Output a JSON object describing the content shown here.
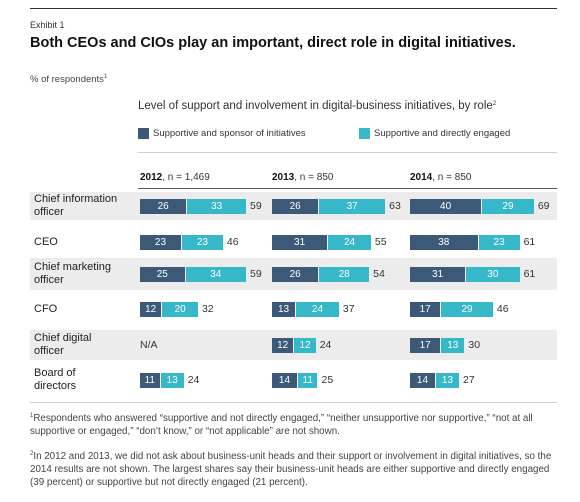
{
  "exhibit": "Exhibit 1",
  "title": "Both CEOs and CIOs play an important, direct role in digital initiatives.",
  "respondents_label": "% of respondents",
  "respondents_sup": "1",
  "subtitle": "Level of support and involvement in digital-business initiatives, by role",
  "subtitle_sup": "2",
  "colors": {
    "dark": "#3c5a77",
    "teal": "#36b8c9",
    "band": "#ececec"
  },
  "chart_data": {
    "type": "bar",
    "stacked": true,
    "orientation": "horizontal",
    "categories": [
      "Chief information officer",
      "CEO",
      "Chief marketing officer",
      "CFO",
      "Chief digital officer",
      "Board of directors"
    ],
    "groups": [
      {
        "year": "2012",
        "n_label": "n = 1,469",
        "dark": [
          26,
          23,
          25,
          12,
          null,
          11
        ],
        "teal": [
          33,
          23,
          34,
          20,
          null,
          13
        ],
        "total": [
          59,
          46,
          59,
          32,
          null,
          24
        ]
      },
      {
        "year": "2013",
        "n_label": "n = 850",
        "dark": [
          26,
          31,
          26,
          13,
          12,
          14
        ],
        "teal": [
          37,
          24,
          28,
          24,
          12,
          11
        ],
        "total": [
          63,
          55,
          54,
          37,
          24,
          25
        ]
      },
      {
        "year": "2014",
        "n_label": "n = 850",
        "dark": [
          40,
          38,
          31,
          17,
          17,
          14
        ],
        "teal": [
          29,
          23,
          30,
          29,
          13,
          13
        ],
        "total": [
          69,
          61,
          61,
          46,
          30,
          27
        ]
      }
    ],
    "series": [
      {
        "name": "Supportive and sponsor of initiatives",
        "color": "#3c5a77"
      },
      {
        "name": "Supportive and directly engaged",
        "color": "#36b8c9"
      }
    ],
    "na_label": "N/A",
    "role_labels": [
      "Chief information\nofficer",
      "CEO",
      "Chief marketing\nofficer",
      "CFO",
      "Chief digital\nofficer",
      "Board of\ndirectors"
    ]
  },
  "footnotes": [
    {
      "sup": "1",
      "text": "Respondents who answered “supportive and not directly engaged,” “neither unsupportive nor supportive,” “not at all supportive or engaged,” “don’t know,” or “not applicable” are not shown."
    },
    {
      "sup": "2",
      "text": "In 2012 and 2013, we did not ask about business-unit heads and their support or involvement in digital initiatives, so the 2014 results are not shown. The largest shares say their business-unit heads are either supportive and directly engaged (39 percent) or supportive but not directly engaged (21 percent)."
    }
  ]
}
